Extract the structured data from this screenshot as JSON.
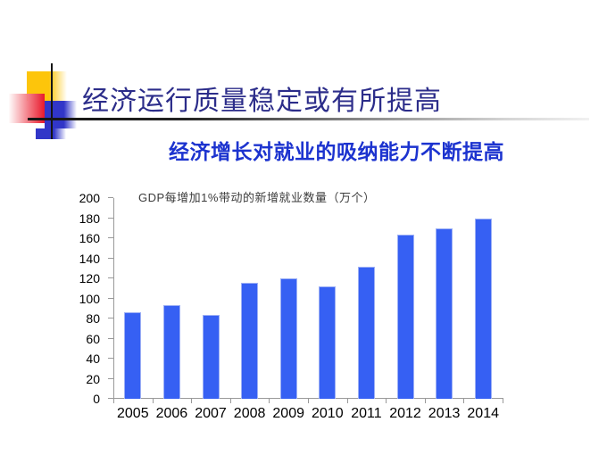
{
  "slide": {
    "title": "经济运行质量稳定或有所提高",
    "subtitle": "经济增长对就业的吸纳能力不断提高"
  },
  "chart_data": {
    "type": "bar",
    "title": "GDP每增加1%带动的新增就业数量（万个）",
    "categories": [
      "2005",
      "2006",
      "2007",
      "2008",
      "2009",
      "2010",
      "2011",
      "2012",
      "2013",
      "2014"
    ],
    "values": [
      86,
      93,
      84,
      116,
      120,
      112,
      132,
      164,
      170,
      180
    ],
    "xlabel": "",
    "ylabel": "",
    "ylim": [
      0,
      200
    ],
    "y_tick_step": 20,
    "grid": false,
    "legend": "none",
    "bar_color": "#3660f3",
    "bar_border_color": "#9db0f5",
    "axis_color": "#999999"
  },
  "colors": {
    "title_text": "#2c2d8a",
    "subtitle_text": "#1c33cf",
    "decor_yellow": "#fdc50b",
    "decor_red": "#e8192c",
    "decor_blue": "#3136c8",
    "background": "#ffffff"
  }
}
